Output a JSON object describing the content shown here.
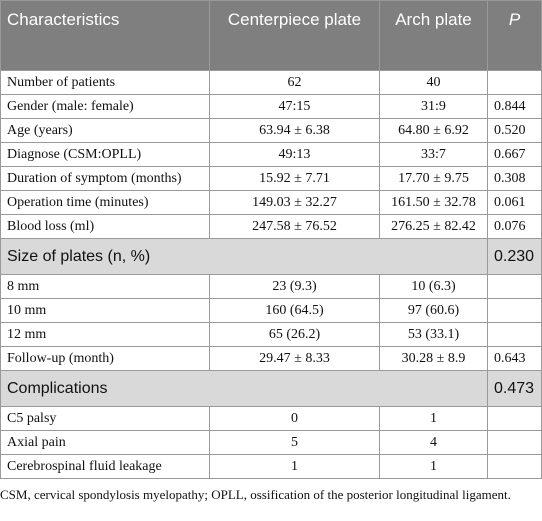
{
  "table": {
    "header": [
      "Characteristics",
      "Centerpiece plate",
      "Arch plate",
      "P"
    ],
    "rows": [
      {
        "cells": [
          "Number of patients",
          "62",
          "40",
          null
        ]
      },
      {
        "cells": [
          "Gender (male: female)",
          "47:15",
          "31:9",
          "0.844"
        ]
      },
      {
        "cells": [
          "Age (years)",
          "63.94 ± 6.38",
          "64.80 ± 6.92",
          "0.520"
        ]
      },
      {
        "cells": [
          "Diagnose (CSM:OPLL)",
          "49:13",
          "33:7",
          "0.667"
        ]
      },
      {
        "cells": [
          "Duration of symptom (months)",
          "15.92 ± 7.71",
          "17.70 ± 9.75",
          "0.308"
        ]
      },
      {
        "cells": [
          "Operation time (minutes)",
          "149.03 ± 32.27",
          "161.50 ± 32.78",
          "0.061"
        ]
      },
      {
        "cells": [
          "Blood loss (ml)",
          "247.58 ± 76.52",
          "276.25 ± 82.42",
          "0.076"
        ]
      },
      {
        "section": "Size of plates (n, %)",
        "p": "0.230"
      },
      {
        "cells": [
          "8 mm",
          "23 (9.3)",
          "10 (6.3)",
          null
        ]
      },
      {
        "cells": [
          "10 mm",
          "160 (64.5)",
          "97 (60.6)",
          null
        ]
      },
      {
        "cells": [
          "12 mm",
          "65 (26.2)",
          "53 (33.1)",
          null
        ]
      },
      {
        "cells": [
          "Follow-up (month)",
          "29.47 ± 8.33",
          "30.28 ± 8.9",
          "0.643"
        ]
      },
      {
        "section": "Complications",
        "p": "0.473"
      },
      {
        "cells": [
          "C5 palsy",
          "0",
          "1",
          null
        ]
      },
      {
        "cells": [
          "Axial pain",
          "5",
          "4",
          null
        ]
      },
      {
        "cells": [
          "Cerebrospinal fluid leakage",
          "1",
          "1",
          null
        ]
      }
    ]
  },
  "footnote": "CSM, cervical spondylosis myelopathy; OPLL, ossification of the posterior longitudinal ligament."
}
